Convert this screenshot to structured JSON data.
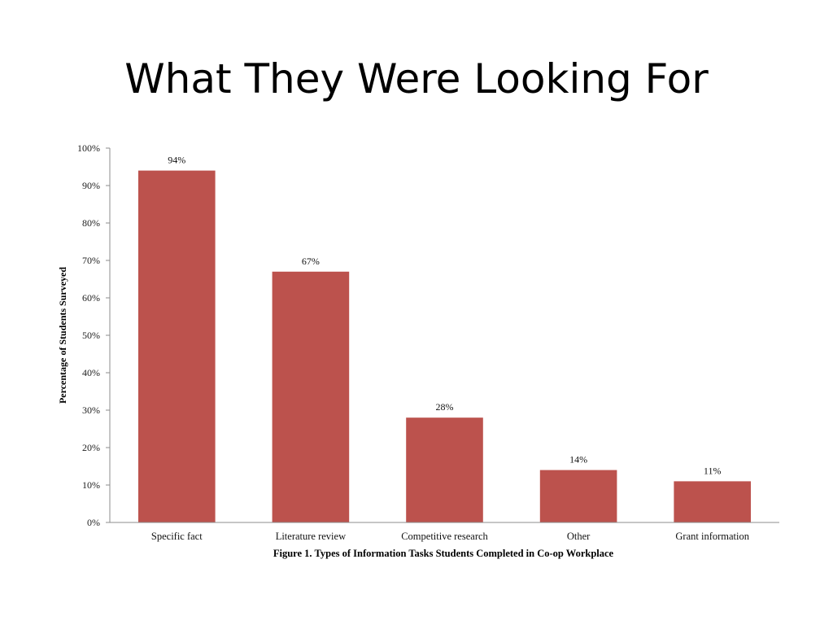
{
  "slide": {
    "title": "What They Were Looking For"
  },
  "chart_data": {
    "type": "bar",
    "categories": [
      "Specific fact",
      "Literature review",
      "Competitive research",
      "Other",
      "Grant information"
    ],
    "values": [
      94,
      67,
      28,
      14,
      11
    ],
    "data_labels": [
      "94%",
      "67%",
      "28%",
      "14%",
      "11%"
    ],
    "ylabel": "Percentage of Students Surveyed",
    "caption": "Figure 1. Types of Information Tasks Students Completed in Co-op Workplace",
    "ylim": [
      0,
      100
    ],
    "y_ticks": [
      "0%",
      "10%",
      "20%",
      "30%",
      "40%",
      "50%",
      "60%",
      "70%",
      "80%",
      "90%",
      "100%"
    ],
    "grid": false,
    "bar_color": "#bc524d"
  }
}
